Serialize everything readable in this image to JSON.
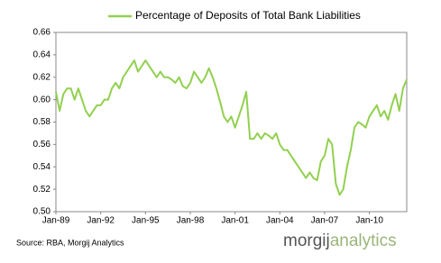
{
  "chart_data": {
    "type": "line",
    "legend_label": "Percentage of Deposits of Total Bank Liabilities",
    "color": "#92d050",
    "grid": false,
    "legend_position": "top",
    "categories": [
      "Jan-89",
      null,
      null,
      null,
      null,
      null,
      null,
      null,
      null,
      null,
      null,
      null,
      "Jan-92",
      null,
      null,
      null,
      null,
      null,
      null,
      null,
      null,
      null,
      null,
      null,
      "Jan-95",
      null,
      null,
      null,
      null,
      null,
      null,
      null,
      null,
      null,
      null,
      null,
      "Jan-98",
      null,
      null,
      null,
      null,
      null,
      null,
      null,
      null,
      null,
      null,
      null,
      "Jan-01",
      null,
      null,
      null,
      null,
      null,
      null,
      null,
      null,
      null,
      null,
      null,
      "Jan-04",
      null,
      null,
      null,
      null,
      null,
      null,
      null,
      null,
      null,
      null,
      null,
      "Jan-07",
      null,
      null,
      null,
      null,
      null,
      null,
      null,
      null,
      null,
      null,
      null,
      "Jan-10",
      null,
      null,
      null,
      null,
      null,
      null,
      null,
      null,
      null,
      null
    ],
    "values": [
      0.607,
      0.59,
      0.605,
      0.61,
      0.61,
      0.6,
      0.61,
      0.6,
      0.59,
      0.585,
      0.59,
      0.595,
      0.595,
      0.6,
      0.6,
      0.61,
      0.615,
      0.61,
      0.62,
      0.625,
      0.63,
      0.635,
      0.625,
      0.63,
      0.635,
      0.63,
      0.625,
      0.62,
      0.625,
      0.62,
      0.62,
      0.618,
      0.615,
      0.62,
      0.612,
      0.61,
      0.615,
      0.625,
      0.62,
      0.615,
      0.62,
      0.628,
      0.62,
      0.61,
      0.598,
      0.585,
      0.58,
      0.585,
      0.575,
      0.585,
      0.595,
      0.607,
      0.565,
      0.565,
      0.57,
      0.565,
      0.57,
      0.568,
      0.565,
      0.57,
      0.56,
      0.555,
      0.555,
      0.55,
      0.545,
      0.54,
      0.535,
      0.53,
      0.535,
      0.53,
      0.528,
      0.545,
      0.55,
      0.565,
      0.56,
      0.525,
      0.515,
      0.52,
      0.54,
      0.555,
      0.575,
      0.58,
      0.578,
      0.575,
      0.585,
      0.59,
      0.595,
      0.585,
      0.59,
      0.582,
      0.595,
      0.605,
      0.59,
      0.61,
      0.618
    ],
    "ylim": [
      0.5,
      0.66
    ],
    "yticks": [
      {
        "value": 0.5,
        "label": "0.50"
      },
      0.52,
      0.54,
      0.56,
      0.58,
      {
        "value": 0.6,
        "label": "0.60"
      },
      0.62,
      0.64,
      0.66
    ]
  },
  "footer": {
    "source": "Source: RBA, Morgij Analytics",
    "logo_main": "morgij",
    "logo_accent": "analytics"
  }
}
